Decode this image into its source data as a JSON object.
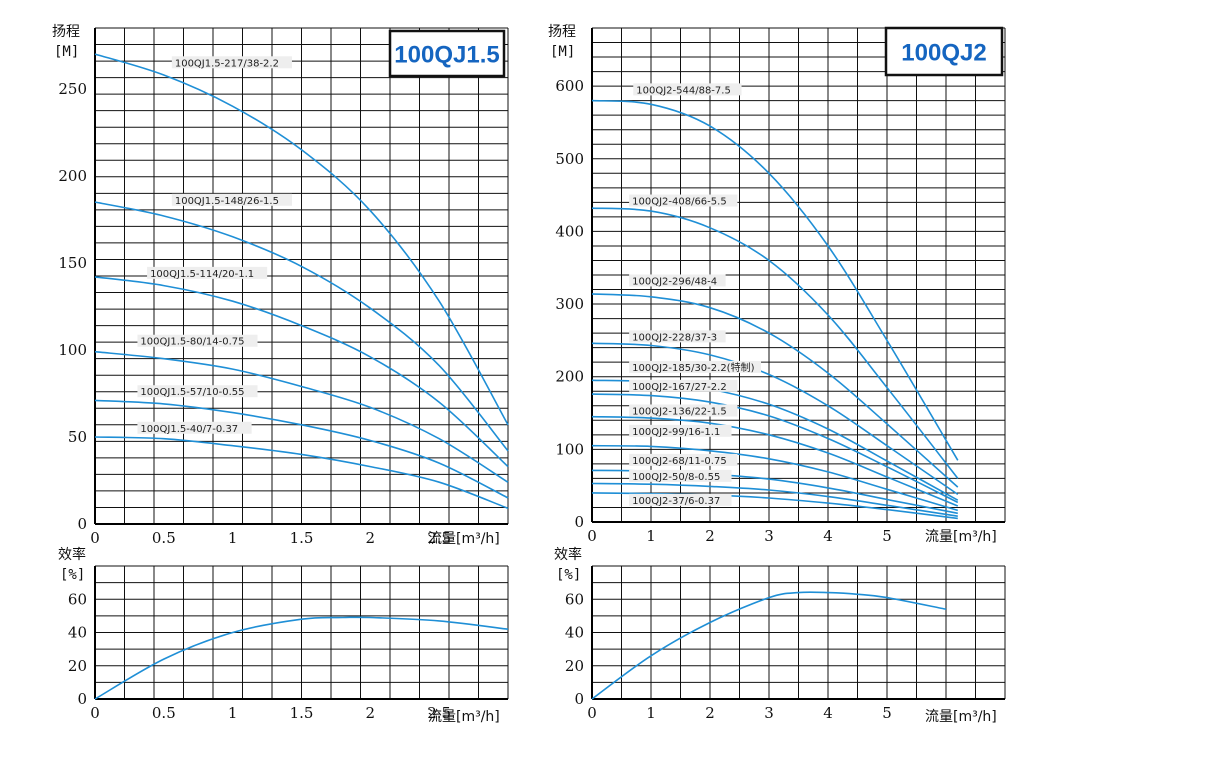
{
  "colors": {
    "curve": "#1f8fd6",
    "grid": "#111111",
    "title": "#1565c0",
    "label_bg": "#eeeeee"
  },
  "chart_data": [
    {
      "type": "line",
      "title": "100QJ1.5",
      "ylabel_top": "扬程",
      "ylabel_unit": "[M]",
      "xlabel": "流量[m³/h]",
      "xlim": [
        0,
        3.0
      ],
      "ylim": [
        0,
        285
      ],
      "xticks": [
        0,
        0.5,
        1,
        1.5,
        2,
        2.5
      ],
      "xtick_labels": [
        "0",
        "0.5",
        "1",
        "1.5",
        "2",
        "2.5"
      ],
      "yticks": [
        0,
        50,
        100,
        150,
        200,
        250
      ],
      "ytick_labels": [
        "0",
        "50",
        "100",
        "150",
        "200",
        "250"
      ],
      "series": [
        {
          "name": "100QJ1.5-217/38-2.2",
          "label_pos": [
            0.58,
            263
          ],
          "x": [
            0,
            0.5,
            1,
            1.5,
            2,
            2.5,
            3
          ],
          "y": [
            270,
            258,
            240,
            215,
            180,
            128,
            57
          ]
        },
        {
          "name": "100QJ1.5-148/26-1.5",
          "label_pos": [
            0.58,
            184
          ],
          "x": [
            0,
            0.5,
            1,
            1.5,
            2,
            2.5,
            3
          ],
          "y": [
            185,
            177,
            165,
            148,
            124,
            91,
            42
          ]
        },
        {
          "name": "100QJ1.5-114/20-1.1",
          "label_pos": [
            0.4,
            142
          ],
          "x": [
            0,
            0.5,
            1,
            1.5,
            2,
            2.5,
            3
          ],
          "y": [
            142,
            137,
            128,
            114,
            96,
            70,
            33
          ]
        },
        {
          "name": "100QJ1.5-80/14-0.75",
          "label_pos": [
            0.33,
            103
          ],
          "x": [
            0,
            0.5,
            1,
            1.5,
            2,
            2.5,
            3
          ],
          "y": [
            99,
            95,
            89,
            79,
            67,
            49,
            24
          ]
        },
        {
          "name": "100QJ1.5-57/10-0.55",
          "label_pos": [
            0.33,
            74
          ],
          "x": [
            0,
            0.5,
            1,
            1.5,
            2,
            2.5,
            3
          ],
          "y": [
            71,
            69,
            64,
            57,
            48,
            35,
            15
          ]
        },
        {
          "name": "100QJ1.5-40/7-0.37",
          "label_pos": [
            0.33,
            53
          ],
          "x": [
            0,
            0.5,
            1,
            1.5,
            2,
            2.5,
            3
          ],
          "y": [
            50,
            49,
            45,
            40,
            33,
            24,
            9
          ]
        }
      ]
    },
    {
      "type": "line",
      "title": "",
      "ylabel_top": "效率",
      "ylabel_unit": "[%]",
      "xlabel": "流量[m³/h]",
      "xlim": [
        0,
        3.0
      ],
      "ylim": [
        0,
        80
      ],
      "xticks": [
        0,
        0.5,
        1,
        1.5,
        2,
        2.5
      ],
      "xtick_labels": [
        "0",
        "0.5",
        "1",
        "1.5",
        "2",
        "2.5"
      ],
      "yticks": [
        0,
        20,
        40,
        60
      ],
      "ytick_labels": [
        "0",
        "20",
        "40",
        "60"
      ],
      "series": [
        {
          "name": "",
          "x": [
            0,
            0.5,
            1,
            1.5,
            1.8,
            2,
            2.5,
            3
          ],
          "y": [
            0,
            24,
            40,
            48,
            49,
            49,
            47,
            42
          ]
        }
      ]
    },
    {
      "type": "line",
      "title": "100QJ2",
      "ylabel_top": "扬程",
      "ylabel_unit": "[M]",
      "xlabel": "流量[m³/h]",
      "xlim": [
        0,
        7.0
      ],
      "ylim": [
        0,
        680
      ],
      "xticks": [
        0,
        1,
        2,
        3,
        4,
        5
      ],
      "xtick_labels": [
        "0",
        "1",
        "2",
        "3",
        "4",
        "5"
      ],
      "yticks": [
        0,
        100,
        200,
        300,
        400,
        500,
        600
      ],
      "ytick_labels": [
        "0",
        "100",
        "200",
        "300",
        "400",
        "500",
        "600"
      ],
      "series": [
        {
          "name": "100QJ2-544/88-7.5",
          "label_pos": [
            0.75,
            590
          ],
          "x": [
            0,
            1,
            2,
            3,
            4,
            5,
            6.2
          ],
          "y": [
            580,
            575,
            545,
            480,
            380,
            250,
            85
          ]
        },
        {
          "name": "100QJ2-408/66-5.5",
          "label_pos": [
            0.68,
            437
          ],
          "x": [
            0,
            1,
            2,
            3,
            4,
            5,
            6.2
          ],
          "y": [
            432,
            428,
            405,
            360,
            285,
            185,
            60
          ]
        },
        {
          "name": "100QJ2-296/48-4",
          "label_pos": [
            0.68,
            327
          ],
          "x": [
            0,
            1,
            2,
            3,
            4,
            5,
            6.2
          ],
          "y": [
            314,
            310,
            295,
            260,
            205,
            135,
            48
          ]
        },
        {
          "name": "100QJ2-228/37-3",
          "label_pos": [
            0.68,
            250
          ],
          "x": [
            0,
            1,
            2,
            3,
            4,
            5,
            6.2
          ],
          "y": [
            246,
            243,
            230,
            203,
            160,
            105,
            38
          ]
        },
        {
          "name": "100QJ2-185/30-2.2(特制)",
          "label_pos": [
            0.68,
            208
          ],
          "x": [
            0,
            1,
            2,
            3,
            4,
            5,
            6.2
          ],
          "y": [
            195,
            193,
            183,
            162,
            128,
            84,
            30
          ]
        },
        {
          "name": "100QJ2-167/27-2.2",
          "label_pos": [
            0.68,
            182
          ],
          "x": [
            0,
            1,
            2,
            3,
            4,
            5,
            6.2
          ],
          "y": [
            176,
            174,
            165,
            146,
            115,
            76,
            27
          ]
        },
        {
          "name": "100QJ2-136/22-1.5",
          "label_pos": [
            0.68,
            148
          ],
          "x": [
            0,
            1,
            2,
            3,
            4,
            5,
            6.2
          ],
          "y": [
            145,
            143,
            136,
            120,
            95,
            62,
            22
          ]
        },
        {
          "name": "100QJ2-99/16-1.1",
          "label_pos": [
            0.68,
            120
          ],
          "x": [
            0,
            1,
            2,
            3,
            4,
            5,
            6.2
          ],
          "y": [
            105,
            104,
            98,
            87,
            69,
            45,
            16
          ]
        },
        {
          "name": "100QJ2-68/11-0.75",
          "label_pos": [
            0.68,
            80
          ],
          "x": [
            0,
            1,
            2,
            3,
            4,
            5,
            6.2
          ],
          "y": [
            71,
            70,
            66,
            59,
            47,
            31,
            12
          ]
        },
        {
          "name": "100QJ2-50/8-0.55",
          "label_pos": [
            0.68,
            58
          ],
          "x": [
            0,
            1,
            2,
            3,
            4,
            5,
            6.2
          ],
          "y": [
            53,
            52,
            49,
            44,
            35,
            23,
            8
          ]
        },
        {
          "name": "100QJ2-37/6-0.37",
          "label_pos": [
            0.68,
            25
          ],
          "x": [
            0,
            1,
            2,
            3,
            4,
            5,
            6.2
          ],
          "y": [
            40,
            39,
            37,
            33,
            26,
            17,
            5
          ]
        }
      ]
    },
    {
      "type": "line",
      "title": "",
      "ylabel_top": "效率",
      "ylabel_unit": "[%]",
      "xlabel": "流量[m³/h]",
      "xlim": [
        0,
        7.0
      ],
      "ylim": [
        0,
        80
      ],
      "xticks": [
        0,
        1,
        2,
        3,
        4,
        5
      ],
      "xtick_labels": [
        "0",
        "1",
        "2",
        "3",
        "4",
        "5"
      ],
      "yticks": [
        0,
        20,
        40,
        60
      ],
      "ytick_labels": [
        "0",
        "20",
        "40",
        "60"
      ],
      "series": [
        {
          "name": "",
          "x": [
            0,
            1,
            2,
            3,
            3.5,
            4,
            4.5,
            5,
            6.0
          ],
          "y": [
            0,
            26,
            46,
            61,
            64,
            64,
            63,
            61,
            54
          ]
        }
      ]
    }
  ]
}
